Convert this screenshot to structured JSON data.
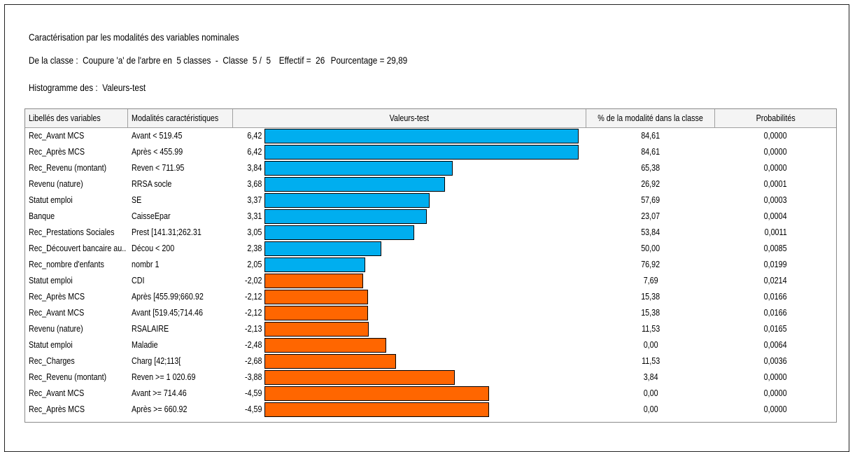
{
  "header": {
    "title": "Caractérisation par les modalités des variables nominales",
    "class_line": {
      "prefix": "De la classe :  Coupure 'a' de l'arbre en  5 classes  -  Classe  5 /  5",
      "effectif": "Effectif =  26",
      "pourcentage": "Pourcentage = 29,89"
    },
    "histogram": "Histogramme des :  Valeurs-test"
  },
  "table": {
    "columns": [
      "Libellés des variables",
      "Modalités caractéristiques",
      "Valeurs-test",
      "% de la modalité dans la classe",
      "Probabilités"
    ],
    "colors": {
      "positive": "#00AEEF",
      "negative": "#FF6600"
    },
    "rows": [
      {
        "variable": "Rec_Avant MCS",
        "modalite": "Avant < 519.45",
        "vt_label": "6,42",
        "vt": 6.42,
        "pct": "84,61",
        "prob": "0,0000"
      },
      {
        "variable": "Rec_Après MCS",
        "modalite": "Après < 455.99",
        "vt_label": "6,42",
        "vt": 6.42,
        "pct": "84,61",
        "prob": "0,0000"
      },
      {
        "variable": "Rec_Revenu (montant)",
        "modalite": "Reven < 711.95",
        "vt_label": "3,84",
        "vt": 3.84,
        "pct": "65,38",
        "prob": "0,0000"
      },
      {
        "variable": "Revenu (nature)",
        "modalite": "RRSA socle",
        "vt_label": "3,68",
        "vt": 3.68,
        "pct": "26,92",
        "prob": "0,0001"
      },
      {
        "variable": "Statut emploi",
        "modalite": "SE",
        "vt_label": "3,37",
        "vt": 3.37,
        "pct": "57,69",
        "prob": "0,0003"
      },
      {
        "variable": "Banque",
        "modalite": "CaisseEpar",
        "vt_label": "3,31",
        "vt": 3.31,
        "pct": "23,07",
        "prob": "0,0004"
      },
      {
        "variable": "Rec_Prestations Sociales",
        "modalite": "Prest [141.31;262.31",
        "vt_label": "3,05",
        "vt": 3.05,
        "pct": "53,84",
        "prob": "0,0011"
      },
      {
        "variable": "Rec_Découvert bancaire au...",
        "modalite": "Décou < 200",
        "vt_label": "2,38",
        "vt": 2.38,
        "pct": "50,00",
        "prob": "0,0085"
      },
      {
        "variable": "Rec_nombre d'enfants",
        "modalite": "nombr 1",
        "vt_label": "2,05",
        "vt": 2.05,
        "pct": "76,92",
        "prob": "0,0199"
      },
      {
        "variable": "Statut emploi",
        "modalite": "CDI",
        "vt_label": "-2,02",
        "vt": -2.02,
        "pct": "7,69",
        "prob": "0,0214"
      },
      {
        "variable": "Rec_Après MCS",
        "modalite": "Après [455.99;660.92",
        "vt_label": "-2,12",
        "vt": -2.12,
        "pct": "15,38",
        "prob": "0,0166"
      },
      {
        "variable": "Rec_Avant MCS",
        "modalite": "Avant [519.45;714.46",
        "vt_label": "-2,12",
        "vt": -2.12,
        "pct": "15,38",
        "prob": "0,0166"
      },
      {
        "variable": "Revenu (nature)",
        "modalite": "RSALAIRE",
        "vt_label": "-2,13",
        "vt": -2.13,
        "pct": "11,53",
        "prob": "0,0165"
      },
      {
        "variable": "Statut emploi",
        "modalite": "Maladie",
        "vt_label": "-2,48",
        "vt": -2.48,
        "pct": "0,00",
        "prob": "0,0064"
      },
      {
        "variable": "Rec_Charges",
        "modalite": "Charg [42;113[",
        "vt_label": "-2,68",
        "vt": -2.68,
        "pct": "11,53",
        "prob": "0,0036"
      },
      {
        "variable": "Rec_Revenu (montant)",
        "modalite": "Reven >= 1 020.69",
        "vt_label": "-3,88",
        "vt": -3.88,
        "pct": "3,84",
        "prob": "0,0000"
      },
      {
        "variable": "Rec_Avant MCS",
        "modalite": "Avant >= 714.46",
        "vt_label": "-4,59",
        "vt": -4.59,
        "pct": "0,00",
        "prob": "0,0000"
      },
      {
        "variable": "Rec_Après MCS",
        "modalite": "Après >= 660.92",
        "vt_label": "-4,59",
        "vt": -4.59,
        "pct": "0,00",
        "prob": "0,0000"
      }
    ]
  }
}
